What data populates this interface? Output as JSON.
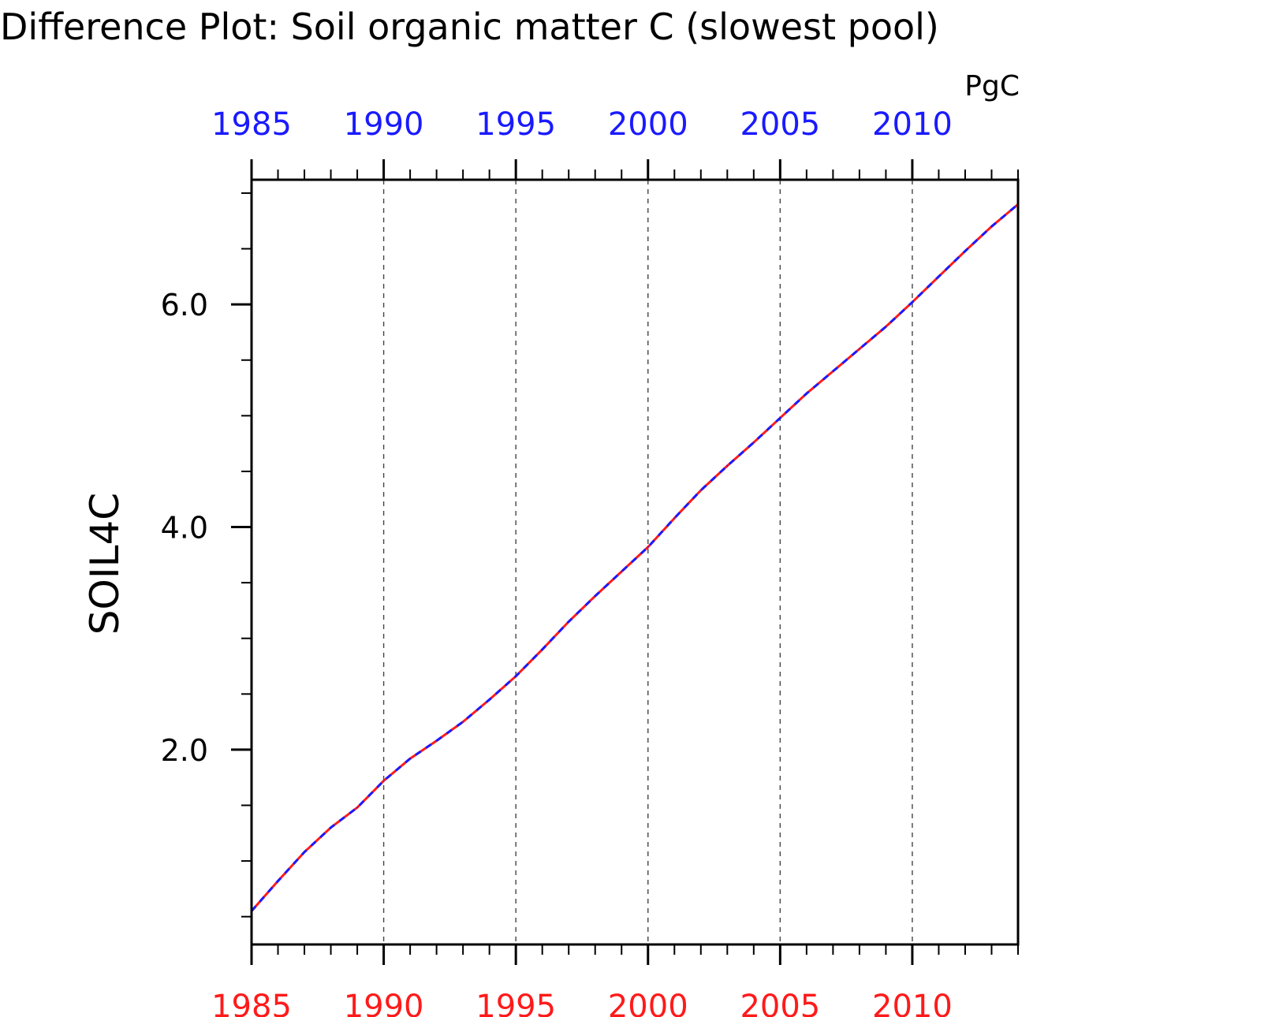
{
  "chart_data": {
    "type": "line",
    "title": "Difference Plot: Soil organic matter C (slowest pool)",
    "units": "PgC",
    "ylabel": "SOIL4C",
    "xlabel": "",
    "xlim": [
      1985,
      2014
    ],
    "ylim": [
      0.25,
      7.12
    ],
    "x_ticks": [
      1985,
      1990,
      1995,
      2000,
      2005,
      2010
    ],
    "x_tick_labels_top": [
      "1985",
      "1990",
      "1995",
      "2000",
      "2005",
      "2010"
    ],
    "x_tick_labels_bottom": [
      "1985",
      "1990",
      "1995",
      "2000",
      "2005",
      "2010"
    ],
    "y_ticks": [
      2.0,
      4.0,
      6.0
    ],
    "y_tick_labels": [
      "2.0",
      "4.0",
      "6.0"
    ],
    "grid": "vertical dashed at major x ticks",
    "colors": {
      "axis": "#000000",
      "top_axis_labels": "#1a1aff",
      "bottom_axis_labels": "#ff1a1a",
      "series_red": "#ff1a1a",
      "series_blue": "#1a1aff",
      "grid": "#444444"
    },
    "series": [
      {
        "line_style": "solid red with dashed blue overlay",
        "x": [
          1985,
          1986,
          1987,
          1988,
          1989,
          1990,
          1991,
          1992,
          1993,
          1994,
          1995,
          1996,
          1997,
          1998,
          1999,
          2000,
          2001,
          2002,
          2003,
          2004,
          2005,
          2006,
          2007,
          2008,
          2009,
          2010,
          2011,
          2012,
          2013,
          2014
        ],
        "y": [
          0.55,
          0.82,
          1.08,
          1.3,
          1.48,
          1.72,
          1.92,
          2.08,
          2.25,
          2.45,
          2.66,
          2.9,
          3.15,
          3.38,
          3.6,
          3.82,
          4.08,
          4.33,
          4.55,
          4.76,
          4.98,
          5.2,
          5.4,
          5.6,
          5.8,
          6.02,
          6.25,
          6.48,
          6.7,
          6.9
        ]
      }
    ]
  }
}
